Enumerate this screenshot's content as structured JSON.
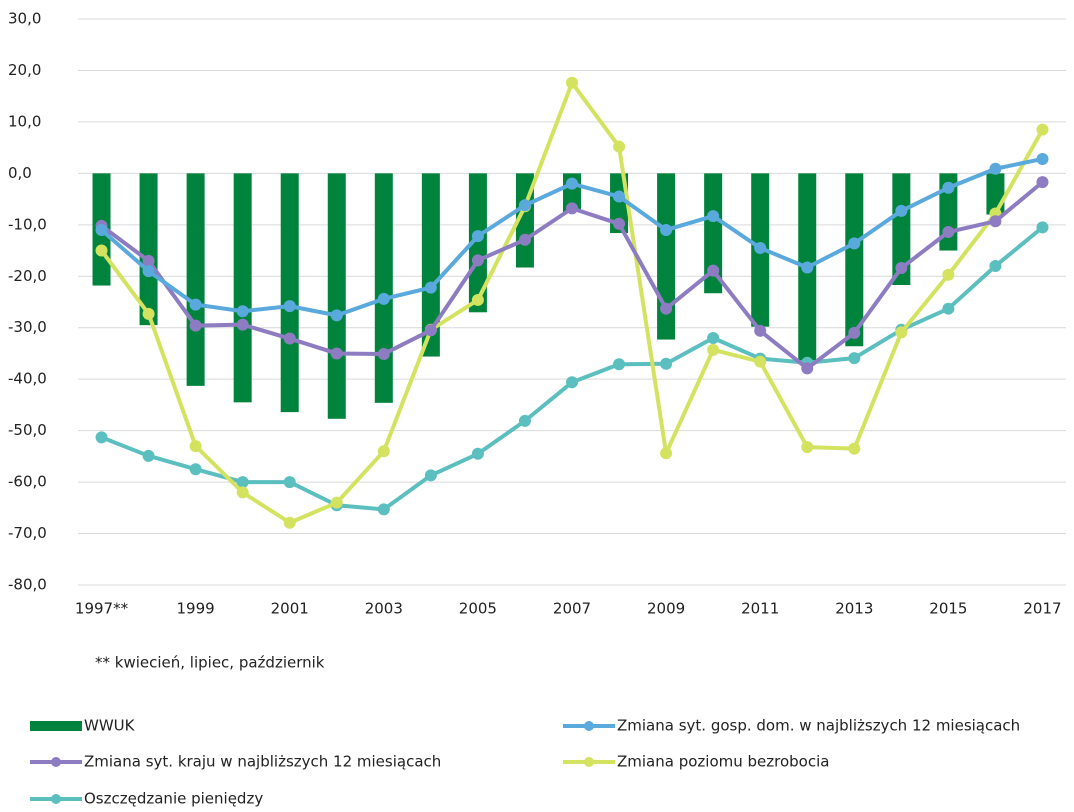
{
  "chart_data": {
    "type": "bar-line",
    "categories": [
      "1997**",
      null,
      "1999",
      null,
      "2001",
      null,
      "2003",
      null,
      "2005",
      null,
      "2007",
      null,
      "2009",
      null,
      "2011",
      null,
      "2013",
      null,
      "2015",
      null,
      "2017"
    ],
    "ylim": [
      -80,
      30
    ],
    "yticks": [
      {
        "value": -80,
        "label": "-80,0"
      },
      {
        "value": -70,
        "label": "-70,0"
      },
      {
        "value": -60,
        "label": "-60,0"
      },
      {
        "value": -50,
        "label": "-50,0"
      },
      {
        "value": -40,
        "label": "-40,0"
      },
      {
        "value": -30,
        "label": "-30,0"
      },
      {
        "value": -20,
        "label": "-20,0"
      },
      {
        "value": -10,
        "label": "-10,0"
      },
      {
        "value": 0,
        "label": "0,0"
      },
      {
        "value": 10,
        "label": "10,0"
      },
      {
        "value": 20,
        "label": "20,0"
      },
      {
        "value": 30,
        "label": "30,0"
      }
    ],
    "grid": true,
    "note": "** kwiecień, lipiec, październik",
    "series": [
      {
        "name": "WWUK",
        "type": "bar",
        "color": "#00843d",
        "values": [
          -21.8,
          -29.5,
          -41.3,
          -44.5,
          -46.4,
          -47.7,
          -44.6,
          -35.6,
          -27.0,
          -18.3,
          -7.5,
          -11.6,
          -32.3,
          -23.3,
          -29.8,
          -36.5,
          -33.6,
          -21.7,
          -15.0,
          -8.0,
          0
        ]
      },
      {
        "name": "Zmiana syt. gosp. dom. w najbliższych 12 miesiącach",
        "type": "line",
        "color": "#5aa9dd",
        "values": [
          -11.0,
          -19.0,
          -25.5,
          -26.8,
          -25.8,
          -27.6,
          -24.4,
          -22.2,
          -12.2,
          -6.2,
          -2.0,
          -4.5,
          -11.0,
          -8.3,
          -14.5,
          -18.3,
          -13.6,
          -7.3,
          -2.8,
          0.9,
          2.8
        ]
      },
      {
        "name": "Zmiana syt. kraju w najbliższych 12 miesiącach",
        "type": "line",
        "color": "#8e7cc3",
        "values": [
          -10.2,
          -17.0,
          -29.6,
          -29.4,
          -32.1,
          -35.0,
          -35.1,
          -30.5,
          -16.9,
          -12.9,
          -6.8,
          -9.8,
          -26.3,
          -18.9,
          -30.6,
          -37.9,
          -31.0,
          -18.4,
          -11.4,
          -9.3,
          -1.7
        ]
      },
      {
        "name": "Zmiana poziomu bezrobocia",
        "type": "line",
        "color": "#d4e35f",
        "values": [
          -15.0,
          -27.3,
          -53.0,
          -62.0,
          -67.9,
          -64.0,
          -54.0,
          -30.4,
          -24.6,
          -6.4,
          17.6,
          5.2,
          -54.4,
          -34.3,
          -36.6,
          -53.2,
          -53.5,
          -30.9,
          -19.7,
          -7.8,
          8.5
        ]
      },
      {
        "name": "Oszczędzanie pieniędzy",
        "type": "line",
        "color": "#5bbfbf",
        "values": [
          -51.3,
          -54.9,
          -57.5,
          -60.0,
          -60.0,
          -64.5,
          -65.3,
          -58.7,
          -54.5,
          -48.1,
          -40.6,
          -37.1,
          -37.0,
          -32.0,
          -36.0,
          -36.8,
          -35.9,
          -30.4,
          -26.3,
          -18.0,
          -10.5
        ]
      }
    ]
  }
}
